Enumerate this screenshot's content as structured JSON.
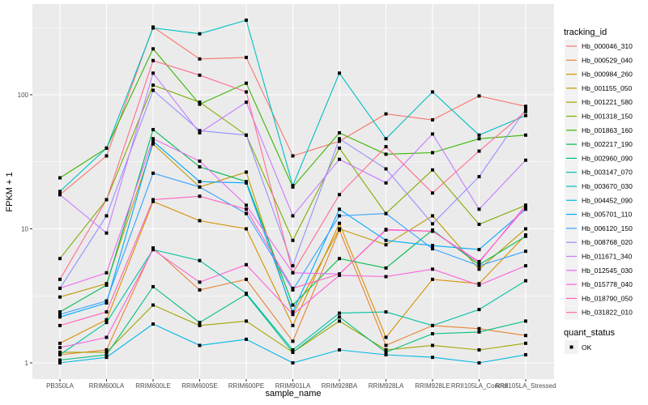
{
  "chart_data": {
    "type": "line",
    "title": "",
    "xlabel": "sample_name",
    "ylabel": "FPKM + 1",
    "yscale": "log10",
    "ylim": [
      0.85,
      380
    ],
    "yticks": [
      1,
      10,
      100
    ],
    "ytick_labels": [
      "1",
      "10",
      "100"
    ],
    "grid": true,
    "legend_position": "right",
    "categories": [
      "PB350LA",
      "RRIM600LA",
      "RRIM600LE",
      "RRIM600SE",
      "RRIM600PE",
      "RRIM901LA",
      "RRIM928BA",
      "RRIM928LA",
      "RRIM928LE",
      "RRII105LA_Control",
      "RRII105LA_Stressed"
    ],
    "legend_title": "tracking_id",
    "series": [
      {
        "name": "Hb_000046_310",
        "color": "#F8766D",
        "values": [
          18,
          35,
          320,
          185,
          190,
          35,
          45,
          72,
          65,
          98,
          82
        ]
      },
      {
        "name": "Hb_000529_040",
        "color": "#EA8331",
        "values": [
          1.15,
          1.25,
          7.2,
          3.5,
          4.2,
          1.45,
          9.8,
          1.35,
          1.9,
          1.8,
          1.6
        ]
      },
      {
        "name": "Hb_000984_260",
        "color": "#D89000",
        "values": [
          1.4,
          2.1,
          16,
          11.5,
          10,
          1.9,
          11,
          1.55,
          4.2,
          3.9,
          9
        ]
      },
      {
        "name": "Hb_001155_050",
        "color": "#C09B00",
        "values": [
          3.1,
          3.9,
          43,
          20.5,
          26.5,
          2.3,
          10,
          7.6,
          12.5,
          5,
          10
        ]
      },
      {
        "name": "Hb_001221_580",
        "color": "#A3A500",
        "values": [
          1.2,
          1.2,
          2.7,
          1.9,
          2.05,
          1.2,
          2.05,
          1.25,
          1.35,
          1.25,
          1.4
        ]
      },
      {
        "name": "Hb_001318_150",
        "color": "#7CAE00",
        "values": [
          6,
          16.5,
          118,
          88,
          50,
          8.2,
          40,
          13,
          27.5,
          10.8,
          15
        ]
      },
      {
        "name": "Hb_001863_160",
        "color": "#39B600",
        "values": [
          24,
          40,
          220,
          85,
          122,
          20.5,
          52,
          36,
          37,
          47,
          50
        ]
      },
      {
        "name": "Hb_002217_190",
        "color": "#00BB4E",
        "values": [
          2.4,
          3.8,
          55,
          29,
          22.5,
          2.7,
          6,
          5.1,
          9.8,
          5.4,
          8.8
        ]
      },
      {
        "name": "Hb_002960_090",
        "color": "#00BF7D",
        "values": [
          1.05,
          1.15,
          3.7,
          2,
          3.25,
          1.2,
          2.2,
          1.2,
          1.65,
          1.7,
          2.05
        ]
      },
      {
        "name": "Hb_003147_070",
        "color": "#00C1A3",
        "values": [
          1.15,
          2.0,
          7,
          5.8,
          3.3,
          1.25,
          2.35,
          2.4,
          1.9,
          2.5,
          4.1
        ]
      },
      {
        "name": "Hb_003670_030",
        "color": "#00BFC4",
        "values": [
          19,
          40,
          315,
          285,
          360,
          21,
          145,
          47,
          105,
          50,
          70
        ]
      },
      {
        "name": "Hb_004452_090",
        "color": "#00B8E5",
        "values": [
          1.0,
          1.1,
          1.95,
          1.35,
          1.5,
          1.0,
          1.25,
          1.15,
          1.1,
          1.0,
          1.15
        ]
      },
      {
        "name": "Hb_005701_110",
        "color": "#00A9FF",
        "values": [
          2.2,
          2.8,
          45,
          22.5,
          22,
          2.4,
          14,
          8.2,
          7.5,
          7,
          14
        ]
      },
      {
        "name": "Hb_006120_150",
        "color": "#35A2FF",
        "values": [
          2.3,
          2.9,
          26,
          20.5,
          13,
          3.5,
          12.5,
          13,
          7.1,
          5.3,
          6.8
        ]
      },
      {
        "name": "Hb_008768_020",
        "color": "#9590FF",
        "values": [
          3.6,
          12.5,
          108,
          54,
          50,
          5.3,
          47,
          28,
          10.9,
          24.5,
          78
        ]
      },
      {
        "name": "Hb_011671_340",
        "color": "#C77CFF",
        "values": [
          18,
          9.3,
          145,
          52,
          88,
          12.5,
          33,
          22,
          51,
          14,
          32.5
        ]
      },
      {
        "name": "Hb_012545_030",
        "color": "#E76BF3",
        "values": [
          3.6,
          4.7,
          47,
          32,
          15,
          4.7,
          4.6,
          9.9,
          9.6,
          5.7,
          14.5
        ]
      },
      {
        "name": "Hb_015778_040",
        "color": "#FA62DB",
        "values": [
          1.3,
          1.55,
          7.0,
          4.0,
          5.4,
          2.3,
          4.5,
          4.4,
          5.0,
          3.8,
          5.3
        ]
      },
      {
        "name": "Hb_018790_050",
        "color": "#FF62BC",
        "values": [
          1.9,
          2.4,
          16.5,
          17.5,
          14,
          3.6,
          4.6,
          9.8,
          9.6,
          5.6,
          15
        ]
      },
      {
        "name": "Hb_031822_010",
        "color": "#FF6C91",
        "values": [
          4.2,
          16.5,
          180,
          140,
          105,
          4.7,
          18,
          41,
          18.5,
          38,
          75
        ]
      }
    ],
    "legend2_title": "quant_status",
    "legend2_entries": [
      {
        "label": "OK",
        "shape": "square-point"
      }
    ]
  }
}
